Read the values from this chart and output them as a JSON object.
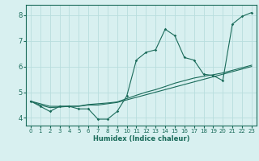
{
  "title": "",
  "xlabel": "Humidex (Indice chaleur)",
  "bg_color": "#d8f0f0",
  "grid_color": "#b8dede",
  "line_color": "#1a6b5a",
  "xlim": [
    -0.5,
    23.5
  ],
  "ylim": [
    3.7,
    8.4
  ],
  "yticks": [
    4,
    5,
    6,
    7,
    8
  ],
  "xticks": [
    0,
    1,
    2,
    3,
    4,
    5,
    6,
    7,
    8,
    9,
    10,
    11,
    12,
    13,
    14,
    15,
    16,
    17,
    18,
    19,
    20,
    21,
    22,
    23
  ],
  "series": [
    [
      4.65,
      4.45,
      4.25,
      4.45,
      4.45,
      4.35,
      4.35,
      3.95,
      3.95,
      4.25,
      4.85,
      6.25,
      6.55,
      6.65,
      7.45,
      7.2,
      6.35,
      6.25,
      5.7,
      5.65,
      5.45,
      7.65,
      7.95,
      8.1
    ],
    [
      4.65,
      4.55,
      4.45,
      4.45,
      4.45,
      4.45,
      4.5,
      4.5,
      4.55,
      4.6,
      4.7,
      4.8,
      4.9,
      5.0,
      5.1,
      5.2,
      5.3,
      5.4,
      5.5,
      5.6,
      5.7,
      5.8,
      5.9,
      6.0
    ],
    [
      4.65,
      4.5,
      4.4,
      4.42,
      4.45,
      4.46,
      4.52,
      4.55,
      4.58,
      4.62,
      4.75,
      4.88,
      5.0,
      5.1,
      5.22,
      5.35,
      5.45,
      5.55,
      5.62,
      5.68,
      5.75,
      5.85,
      5.95,
      6.05
    ]
  ]
}
